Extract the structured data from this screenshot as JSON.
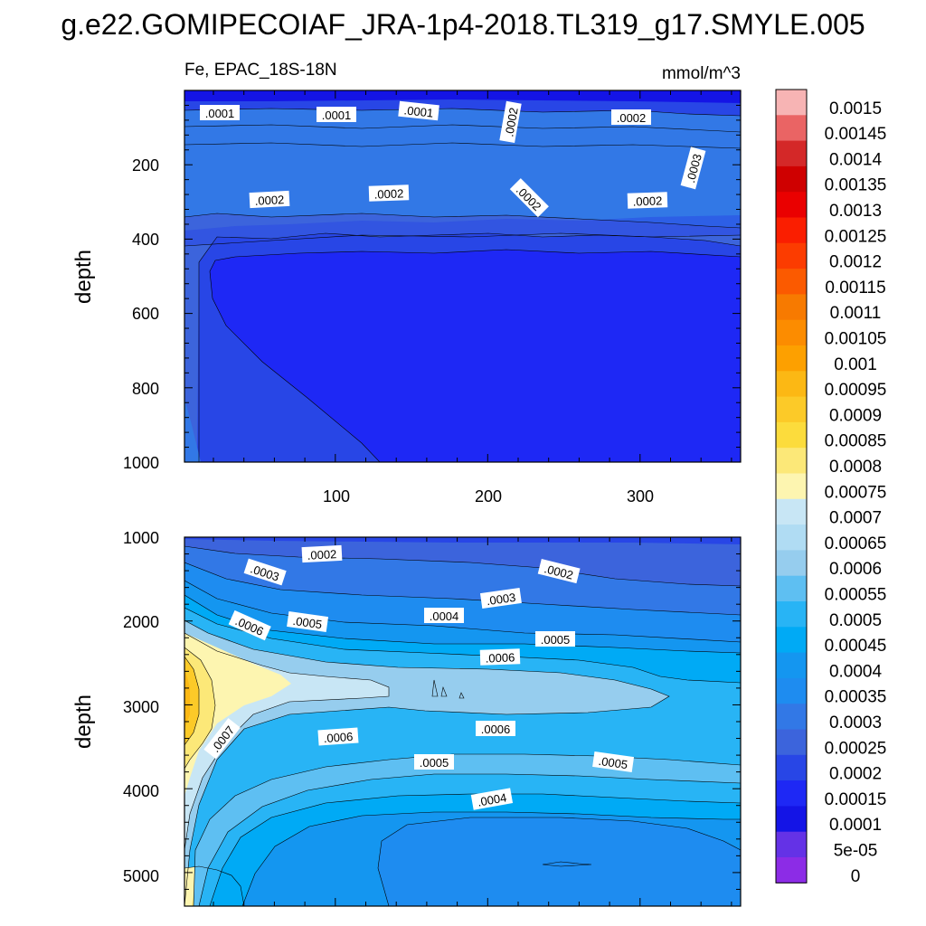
{
  "title": "g.e22.GOMIPECOIAF_JRA-1p4-2018.TL319_g17.SMYLE.005",
  "subtitle_left": "Fe, EPAC_18S-18N",
  "subtitle_right": "mmol/m^3",
  "chart_data": {
    "type": "heatmap",
    "panels": [
      {
        "ylabel": "depth",
        "ylim": [
          0,
          1000
        ],
        "y_reversed": true,
        "yticks": [
          "200",
          "400",
          "600",
          "800",
          "1000"
        ],
        "xlim": [
          1,
          366
        ],
        "xticks": [
          "100",
          "200",
          "300"
        ],
        "contour_labels": [
          ".0001",
          ".0001",
          ".0001",
          ".0002",
          ".0002",
          ".0003",
          ".0002",
          ".0002",
          ".0002",
          ".0002"
        ]
      },
      {
        "ylabel": "depth",
        "ylim": [
          1000,
          5400
        ],
        "y_reversed": true,
        "yticks": [
          "1000",
          "2000",
          "3000",
          "4000",
          "5000"
        ],
        "xlim": [
          1,
          366
        ],
        "contour_labels": [
          ".0002",
          ".0003",
          ".0002",
          ".0006",
          ".0005",
          ".0004",
          ".0003",
          ".0005",
          ".0006",
          ".0007",
          ".0006",
          ".0006",
          ".0005",
          ".0005",
          ".0004"
        ]
      }
    ],
    "colorbar": {
      "labels": [
        "0.0015",
        "0.00145",
        "0.0014",
        "0.00135",
        "0.0013",
        "0.00125",
        "0.0012",
        "0.00115",
        "0.0011",
        "0.00105",
        "0.001",
        "0.00095",
        "0.0009",
        "0.00085",
        "0.0008",
        "0.00075",
        "0.0007",
        "0.00065",
        "0.0006",
        "0.00055",
        "0.0005",
        "0.00045",
        "0.0004",
        "0.00035",
        "0.0003",
        "0.00025",
        "0.0002",
        "0.00015",
        "0.0001",
        "5e-05",
        "0"
      ],
      "colors": [
        "#f7b4b4",
        "#ea6464",
        "#d42828",
        "#cf0000",
        "#ea0000",
        "#fa1e00",
        "#fc3c00",
        "#fb5a00",
        "#f77a00",
        "#fc8c00",
        "#fda000",
        "#fcb814",
        "#fcca28",
        "#fcdc3c",
        "#fce878",
        "#fdf5b0",
        "#c8e6f5",
        "#b0dcf3",
        "#96cdee",
        "#5ebff2",
        "#28b4f5",
        "#00aaf5",
        "#1496f0",
        "#1e8cf0",
        "#3278e6",
        "#3c64dc",
        "#2846e6",
        "#1e28f5",
        "#1414e6",
        "#6432e6",
        "#8c2ce6"
      ]
    }
  }
}
